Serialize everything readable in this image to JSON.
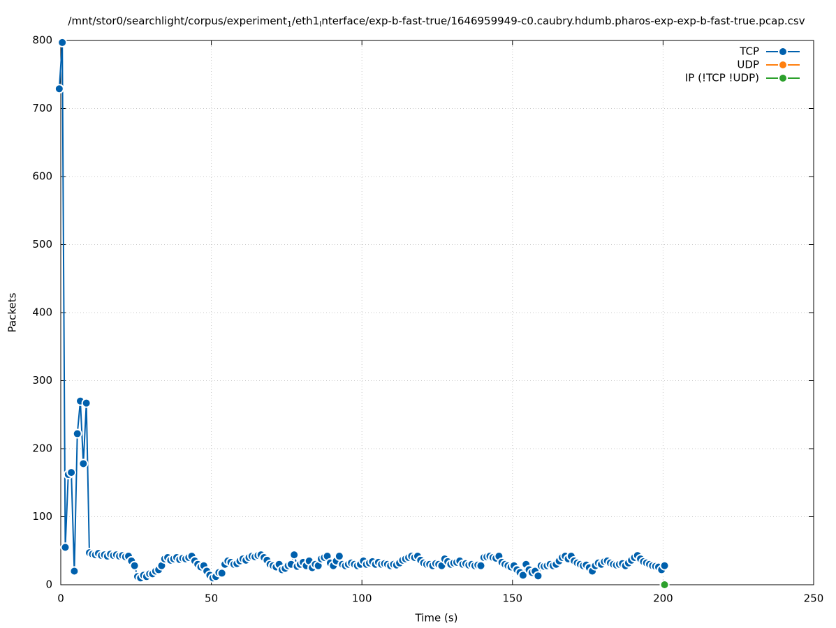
{
  "chart_data": {
    "type": "line",
    "title_parts": [
      "/mnt/stor0/searchlight/corpus/experiment",
      "1",
      "/eth1",
      "I",
      "nterface/exp-b-fast-true/1646959949-c0.caubry.hdumb.pharos-exp-exp-b-fast-true.pcap.csv"
    ],
    "x_label": "Time (s)",
    "y_label": "Packets",
    "xlim": [
      0,
      250
    ],
    "xticks": [
      0,
      50,
      100,
      150,
      200,
      250
    ],
    "ylim": [
      0,
      800
    ],
    "yticks": [
      0,
      100,
      200,
      300,
      400,
      500,
      600,
      700,
      800
    ],
    "grid": true,
    "legend": "top-right",
    "series": [
      {
        "name": "TCP",
        "color": "#0060ad",
        "x": [
          -0.5,
          0.5,
          1.5,
          2.5,
          3.5,
          4.5,
          5.5,
          6.5,
          7.5,
          8.5,
          9.5,
          10.5,
          11.5,
          12.5,
          13.5,
          14.5,
          15.5,
          16.5,
          17.5,
          18.5,
          19.5,
          20.5,
          21.5,
          22.5,
          23.5,
          24.5,
          25.5,
          26.5,
          27.5,
          28.5,
          29.5,
          30.5,
          31.5,
          32.5,
          33.5,
          34.5,
          35.5,
          36.5,
          37.5,
          38.5,
          39.5,
          40.5,
          41.5,
          42.5,
          43.5,
          44.5,
          45.5,
          46.5,
          47.5,
          48.5,
          49.5,
          50.5,
          51.5,
          52.5,
          53.5,
          54.5,
          55.5,
          56.5,
          57.5,
          58.5,
          59.5,
          60.5,
          61.5,
          62.5,
          63.5,
          64.5,
          65.5,
          66.5,
          67.5,
          68.5,
          69.5,
          70.5,
          71.5,
          72.5,
          73.5,
          74.5,
          75.5,
          76.5,
          77.5,
          78.5,
          79.5,
          80.5,
          81.5,
          82.5,
          83.5,
          84.5,
          85.5,
          86.5,
          87.5,
          88.5,
          89.5,
          90.5,
          91.5,
          92.5,
          93.5,
          94.5,
          95.5,
          96.5,
          97.5,
          98.5,
          99.5,
          100.5,
          101.5,
          102.5,
          103.5,
          104.5,
          105.5,
          106.5,
          107.5,
          108.5,
          109.5,
          110.5,
          111.5,
          112.5,
          113.5,
          114.5,
          115.5,
          116.5,
          117.5,
          118.5,
          119.5,
          120.5,
          121.5,
          122.5,
          123.5,
          124.5,
          125.5,
          126.5,
          127.5,
          128.5,
          129.5,
          130.5,
          131.5,
          132.5,
          133.5,
          134.5,
          135.5,
          136.5,
          137.5,
          138.5,
          139.5,
          140.5,
          141.5,
          142.5,
          143.5,
          144.5,
          145.5,
          146.5,
          147.5,
          148.5,
          149.5,
          150.5,
          151.5,
          152.5,
          153.5,
          154.5,
          155.5,
          156.5,
          157.5,
          158.5,
          159.5,
          160.5,
          161.5,
          162.5,
          163.5,
          164.5,
          165.5,
          166.5,
          167.5,
          168.5,
          169.5,
          170.5,
          171.5,
          172.5,
          173.5,
          174.5,
          175.5,
          176.5,
          177.5,
          178.5,
          179.5,
          180.5,
          181.5,
          182.5,
          183.5,
          184.5,
          185.5,
          186.5,
          187.5,
          188.5,
          189.5,
          190.5,
          191.5,
          192.5,
          193.5,
          194.5,
          195.5,
          196.5,
          197.5,
          198.5,
          199.5,
          200.5
        ],
        "values": [
          729,
          797,
          55,
          162,
          165,
          20,
          222,
          270,
          178,
          267,
          47,
          45,
          44,
          46,
          43,
          44,
          42,
          45,
          43,
          44,
          42,
          43,
          41,
          42,
          35,
          28,
          12,
          10,
          14,
          12,
          16,
          16,
          20,
          22,
          28,
          38,
          40,
          36,
          38,
          40,
          37,
          39,
          38,
          40,
          42,
          35,
          30,
          26,
          28,
          20,
          14,
          10,
          12,
          18,
          17,
          30,
          35,
          33,
          30,
          31,
          35,
          38,
          36,
          40,
          42,
          41,
          43,
          44,
          40,
          36,
          30,
          28,
          26,
          30,
          22,
          24,
          28,
          30,
          44,
          27,
          30,
          33,
          28,
          35,
          25,
          30,
          28,
          38,
          40,
          42,
          32,
          28,
          35,
          42,
          30,
          28,
          30,
          32,
          30,
          28,
          30,
          35,
          30,
          32,
          34,
          30,
          33,
          30,
          31,
          30,
          28,
          30,
          29,
          32,
          36,
          38,
          40,
          42,
          40,
          42,
          36,
          32,
          30,
          30,
          28,
          31,
          30,
          28,
          38,
          34,
          30,
          32,
          33,
          35,
          30,
          31,
          29,
          30,
          28,
          29,
          28,
          40,
          41,
          42,
          40,
          39,
          42,
          33,
          30,
          28,
          26,
          28,
          22,
          18,
          14,
          30,
          22,
          18,
          20,
          13,
          28,
          27,
          28,
          30,
          28,
          30,
          35,
          40,
          42,
          38,
          42,
          35,
          32,
          30,
          28,
          29,
          25,
          20,
          28,
          32,
          30,
          34,
          35,
          32,
          30,
          29,
          30,
          31,
          28,
          32,
          36,
          40,
          43,
          38,
          34,
          32,
          30,
          28,
          27,
          26,
          22,
          28
        ]
      },
      {
        "name": "UDP",
        "color": "#ff7f0e",
        "x": [
          200.5
        ],
        "values": [
          0
        ]
      },
      {
        "name": "IP (!TCP  !UDP)",
        "color": "#2ca02c",
        "x": [
          200.5
        ],
        "values": [
          0
        ]
      }
    ]
  }
}
